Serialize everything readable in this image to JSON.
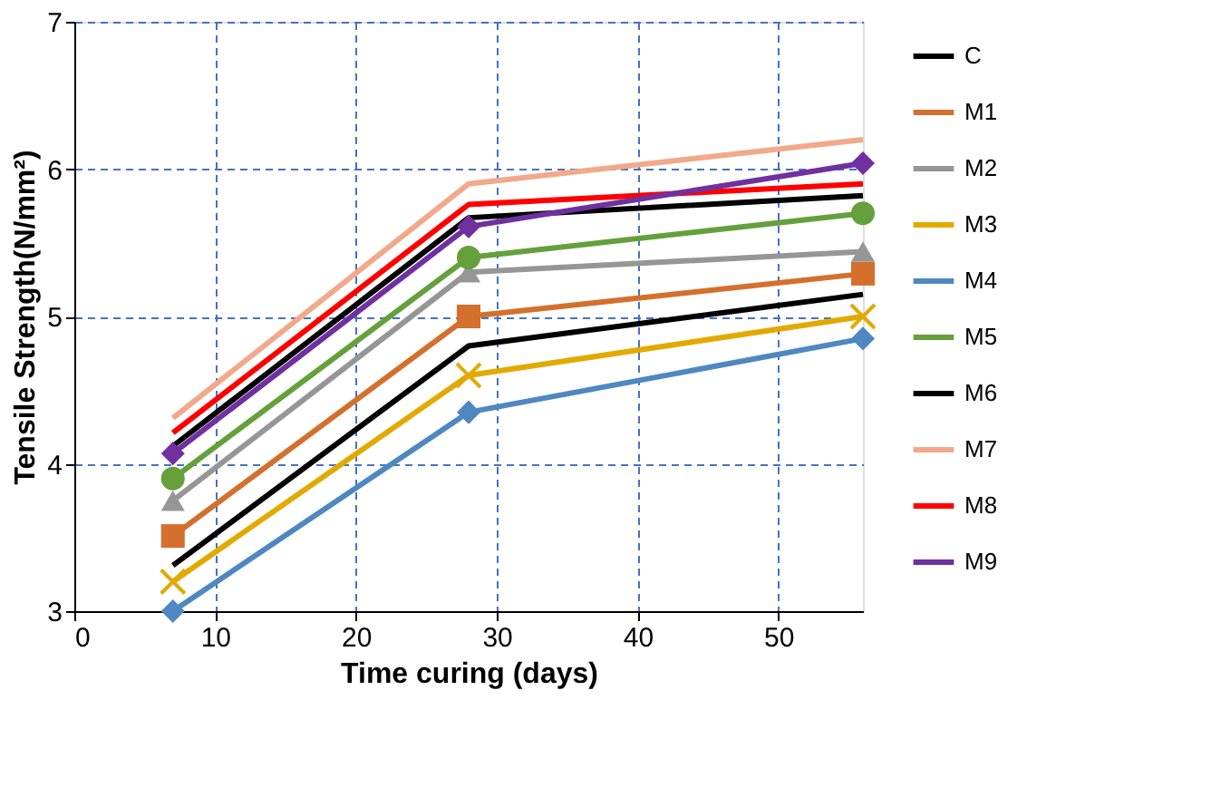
{
  "chart_data": {
    "type": "line",
    "xlabel": "Time curing (days)",
    "ylabel": "Tensile Strength(N/mm²)",
    "x": [
      7,
      28,
      56
    ],
    "xlim": [
      0,
      56
    ],
    "xticks": [
      0,
      10,
      20,
      30,
      40,
      50
    ],
    "ylim": [
      3,
      7
    ],
    "yticks": [
      3,
      4,
      5,
      6,
      7
    ],
    "grid": true,
    "legend": "right",
    "series": [
      {
        "name": "C",
        "color": "#000000",
        "marker": "none",
        "values": [
          3.31,
          4.8,
          5.15
        ]
      },
      {
        "name": "M1",
        "color": "#d4702c",
        "marker": "square",
        "values": [
          3.51,
          5.0,
          5.29
        ]
      },
      {
        "name": "M2",
        "color": "#969696",
        "marker": "triangle",
        "values": [
          3.75,
          5.3,
          5.44
        ]
      },
      {
        "name": "M3",
        "color": "#e2aa00",
        "marker": "cross",
        "values": [
          3.2,
          4.6,
          5.0
        ]
      },
      {
        "name": "M4",
        "color": "#4f88c0",
        "marker": "diamond",
        "values": [
          3.0,
          4.35,
          4.85
        ]
      },
      {
        "name": "M5",
        "color": "#65a03c",
        "marker": "circle",
        "values": [
          3.9,
          5.4,
          5.7
        ]
      },
      {
        "name": "M6",
        "color": "#000000",
        "marker": "none",
        "values": [
          4.12,
          5.67,
          5.82
        ]
      },
      {
        "name": "M7",
        "color": "#f2a88a",
        "marker": "none",
        "values": [
          4.31,
          5.9,
          6.2
        ]
      },
      {
        "name": "M8",
        "color": "#ff0000",
        "marker": "none",
        "values": [
          4.21,
          5.76,
          5.9
        ]
      },
      {
        "name": "M9",
        "color": "#7030a0",
        "marker": "diamond",
        "values": [
          4.07,
          5.61,
          6.04
        ]
      }
    ]
  }
}
